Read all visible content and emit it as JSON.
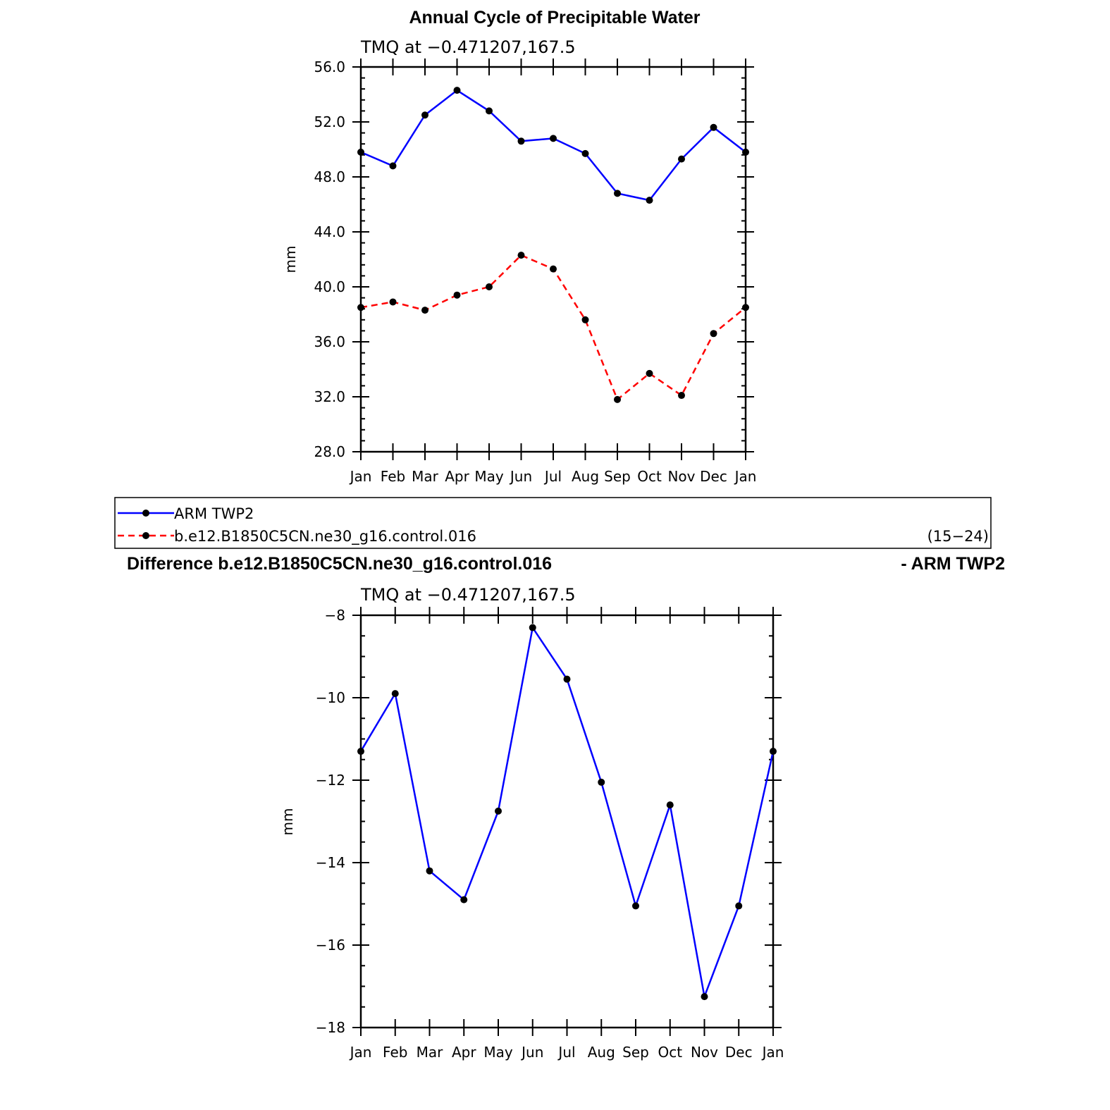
{
  "chart_data": [
    {
      "type": "line",
      "title": "Annual Cycle of Precipitable Water",
      "subtitle": "TMQ at −0.471207,167.5",
      "xlabel": "",
      "ylabel": "mm",
      "ylim": [
        28,
        56
      ],
      "yticks": [
        "56.0",
        "52.0",
        "48.0",
        "44.0",
        "40.0",
        "36.0",
        "32.0",
        "28.0"
      ],
      "categories": [
        "Jan",
        "Feb",
        "Mar",
        "Apr",
        "May",
        "Jun",
        "Jul",
        "Aug",
        "Sep",
        "Oct",
        "Nov",
        "Dec",
        "Jan"
      ],
      "series": [
        {
          "name": "ARM TWP2",
          "color": "#0000ff",
          "dash": "solid",
          "values": [
            49.8,
            48.8,
            52.5,
            54.3,
            52.8,
            50.6,
            50.8,
            49.7,
            46.8,
            46.3,
            49.3,
            51.6,
            49.8
          ]
        },
        {
          "name": "b.e12.B1850C5CN.ne30_g16.control.016",
          "color": "#ff0000",
          "dash": "dashed",
          "values": [
            38.5,
            38.9,
            38.3,
            39.4,
            40.0,
            42.3,
            41.3,
            37.6,
            31.8,
            33.7,
            32.1,
            36.6,
            38.5
          ]
        }
      ],
      "legend": {
        "position": "bottom",
        "years": "(15−24)"
      }
    },
    {
      "type": "line",
      "title_left": "Difference b.e12.B1850C5CN.ne30_g16.control.016",
      "title_right": "- ARM TWP2",
      "subtitle": "TMQ at −0.471207,167.5",
      "xlabel": "",
      "ylabel": "mm",
      "ylim": [
        -18,
        -8
      ],
      "yticks": [
        "−8",
        "−10",
        "−12",
        "−14",
        "−16",
        "−18"
      ],
      "categories": [
        "Jan",
        "Feb",
        "Mar",
        "Apr",
        "May",
        "Jun",
        "Jul",
        "Aug",
        "Sep",
        "Oct",
        "Nov",
        "Dec",
        "Jan"
      ],
      "series": [
        {
          "color": "#0000ff",
          "dash": "solid",
          "values": [
            -11.3,
            -9.9,
            -14.2,
            -14.9,
            -12.75,
            -8.3,
            -9.55,
            -12.05,
            -15.05,
            -12.6,
            -17.25,
            -15.05,
            -11.3
          ]
        }
      ]
    }
  ]
}
